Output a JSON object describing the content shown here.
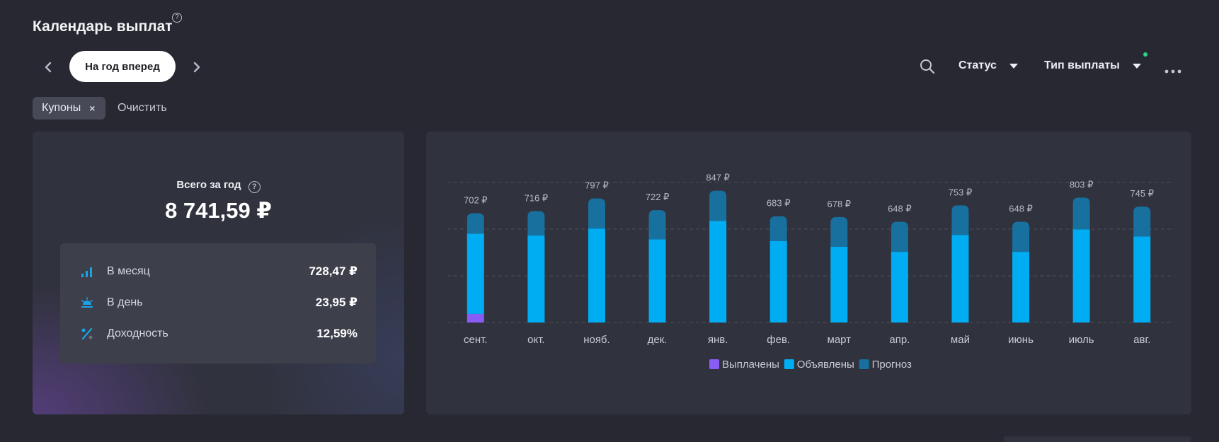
{
  "header": {
    "title": "Календарь выплат",
    "help_icon": "question-circle-icon"
  },
  "toolbar": {
    "prev_icon": "chevron-left-icon",
    "period_label": "На год вперед",
    "next_icon": "chevron-right-icon",
    "search_icon": "search-icon",
    "status_label": "Статус",
    "payment_type_label": "Тип выплаты",
    "more_icon": "more-horizontal-icon"
  },
  "filters": {
    "chip_label": "Купоны",
    "chip_close": "×",
    "clear_label": "Очистить"
  },
  "summary": {
    "total_label": "Всего за год",
    "total_value": "8 741,59 ₽",
    "stats": [
      {
        "icon": "bar-chart-icon",
        "label": "В месяц",
        "value": "728,47 ₽"
      },
      {
        "icon": "sunrise-icon",
        "label": "В день",
        "value": "23,95 ₽"
      },
      {
        "icon": "percent-icon",
        "label": "Доходность",
        "value": "12,59%"
      }
    ]
  },
  "colors": {
    "paid": "#8a5cf6",
    "announced": "#00adf2",
    "forecast": "#17709e",
    "background": "#272831",
    "card": "#30323d"
  },
  "chart_data": {
    "type": "bar",
    "stacked": true,
    "categories": [
      "сент.",
      "окт.",
      "нояб.",
      "дек.",
      "янв.",
      "фев.",
      "март",
      "апр.",
      "май",
      "июнь",
      "июль",
      "авг."
    ],
    "totals_labels": [
      "702 ₽",
      "716 ₽",
      "797 ₽",
      "722 ₽",
      "847 ₽",
      "683 ₽",
      "678 ₽",
      "648 ₽",
      "753 ₽",
      "648 ₽",
      "803 ₽",
      "745 ₽"
    ],
    "series": [
      {
        "name": "Выплачены",
        "color": "#8a5cf6",
        "values": [
          55,
          0,
          0,
          0,
          0,
          0,
          0,
          0,
          0,
          0,
          0,
          0
        ]
      },
      {
        "name": "Объявлены",
        "color": "#00adf2",
        "values": [
          516,
          559,
          604,
          535,
          653,
          524,
          487,
          454,
          563,
          454,
          598,
          553
        ]
      },
      {
        "name": "Прогноз",
        "color": "#17709e",
        "values": [
          131,
          157,
          193,
          187,
          194,
          159,
          191,
          194,
          190,
          194,
          205,
          192
        ]
      }
    ],
    "ylim": [
      0,
      900
    ],
    "grid": true,
    "legend": "bottom-center"
  }
}
